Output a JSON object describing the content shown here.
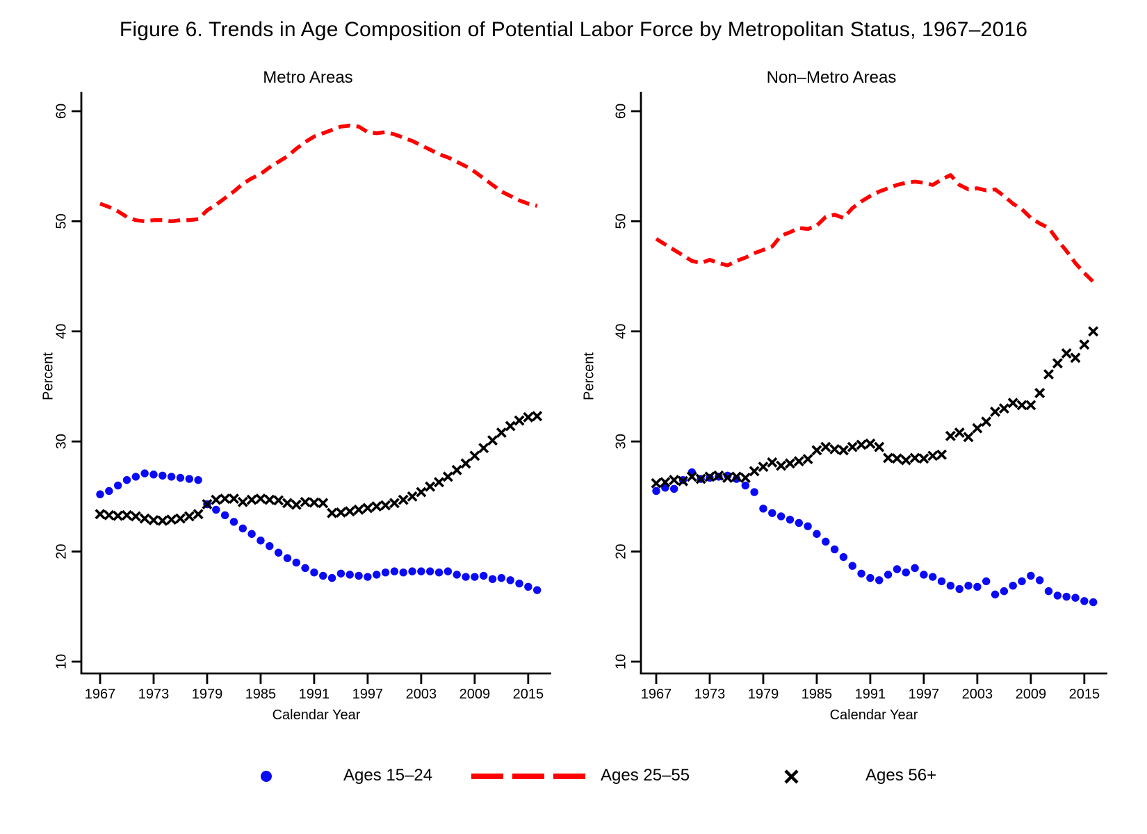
{
  "figure_title": "Figure 6. Trends in Age Composition of Potential Labor Force by Metropolitan Status, 1967–2016",
  "colors": {
    "ages_15_24": "#0a0af5",
    "ages_25_55": "#ff0000",
    "ages_56_plus": "#000000",
    "axis": "#000000",
    "background": "#ffffff"
  },
  "axes": {
    "ylabel": "Percent",
    "xlabel": "Calendar Year",
    "y_ticks": [
      10,
      20,
      30,
      40,
      50,
      60
    ],
    "x_ticks": [
      1967,
      1973,
      1979,
      1985,
      1991,
      1997,
      2003,
      2009,
      2015
    ],
    "ylim": [
      10,
      60
    ],
    "xlim": [
      1967,
      2016
    ],
    "grid": "off"
  },
  "legend": {
    "position": "bottom-center",
    "items": [
      {
        "label": "Ages 15–24",
        "marker": "filled-circle",
        "color": "#0a0af5"
      },
      {
        "label": "Ages 25–55",
        "marker": "dashed-line",
        "color": "#ff0000"
      },
      {
        "label": "Ages 56+",
        "marker": "x-cross",
        "color": "#000000"
      }
    ]
  },
  "chart_data": [
    {
      "type": "line",
      "title": "Metro Areas",
      "xlabel": "Calendar Year",
      "ylabel": "Percent",
      "ylim": [
        10,
        60
      ],
      "x": [
        1967,
        1968,
        1969,
        1970,
        1971,
        1972,
        1973,
        1974,
        1975,
        1976,
        1977,
        1978,
        1979,
        1980,
        1981,
        1982,
        1983,
        1984,
        1985,
        1986,
        1987,
        1988,
        1989,
        1990,
        1991,
        1992,
        1993,
        1994,
        1995,
        1996,
        1997,
        1998,
        1999,
        2000,
        2001,
        2002,
        2003,
        2004,
        2005,
        2006,
        2007,
        2008,
        2009,
        2010,
        2011,
        2012,
        2013,
        2014,
        2015,
        2016
      ],
      "series": [
        {
          "name": "Ages 15–24",
          "style": "scatter-circle",
          "color": "#0a0af5",
          "values": [
            25.2,
            25.5,
            26.0,
            26.5,
            26.8,
            27.1,
            27.0,
            26.9,
            26.8,
            26.7,
            26.6,
            26.5,
            24.3,
            23.8,
            23.3,
            22.7,
            22.1,
            21.6,
            21.0,
            20.5,
            19.9,
            19.4,
            19.0,
            18.5,
            18.1,
            17.8,
            17.6,
            18.0,
            17.9,
            17.8,
            17.7,
            17.9,
            18.1,
            18.2,
            18.1,
            18.2,
            18.2,
            18.2,
            18.1,
            18.2,
            17.9,
            17.7,
            17.7,
            17.8,
            17.5,
            17.6,
            17.4,
            17.1,
            16.8,
            16.5
          ]
        },
        {
          "name": "Ages 25–55",
          "style": "dashed-line",
          "color": "#ff0000",
          "values": [
            51.6,
            51.3,
            50.9,
            50.4,
            50.1,
            50.0,
            50.1,
            50.1,
            50.0,
            50.1,
            50.1,
            50.2,
            51.0,
            51.5,
            52.1,
            52.7,
            53.4,
            53.9,
            54.3,
            54.9,
            55.4,
            55.9,
            56.6,
            57.2,
            57.7,
            58.0,
            58.3,
            58.6,
            58.7,
            58.6,
            58.1,
            58.0,
            58.1,
            57.9,
            57.6,
            57.3,
            56.9,
            56.5,
            56.1,
            55.8,
            55.4,
            55.0,
            54.5,
            53.9,
            53.3,
            52.7,
            52.3,
            51.9,
            51.6,
            51.4
          ]
        },
        {
          "name": "Ages 56+",
          "style": "scatter-x",
          "color": "#000000",
          "values": [
            23.4,
            23.3,
            23.25,
            23.3,
            23.2,
            23.0,
            22.85,
            22.8,
            22.9,
            23.0,
            23.2,
            23.4,
            24.3,
            24.7,
            24.8,
            24.8,
            24.5,
            24.7,
            24.8,
            24.7,
            24.65,
            24.4,
            24.25,
            24.5,
            24.45,
            24.4,
            23.5,
            23.55,
            23.65,
            23.8,
            23.95,
            24.1,
            24.2,
            24.4,
            24.7,
            25.0,
            25.4,
            25.9,
            26.3,
            26.8,
            27.4,
            28.0,
            28.7,
            29.4,
            30.1,
            30.8,
            31.4,
            31.9,
            32.2,
            32.3
          ]
        }
      ]
    },
    {
      "type": "line",
      "title": "Non–Metro Areas",
      "xlabel": "Calendar Year",
      "ylabel": "Percent",
      "ylim": [
        10,
        60
      ],
      "x": [
        1967,
        1968,
        1969,
        1970,
        1971,
        1972,
        1973,
        1974,
        1975,
        1976,
        1977,
        1978,
        1979,
        1980,
        1981,
        1982,
        1983,
        1984,
        1985,
        1986,
        1987,
        1988,
        1989,
        1990,
        1991,
        1992,
        1993,
        1994,
        1995,
        1996,
        1997,
        1998,
        1999,
        2000,
        2001,
        2002,
        2003,
        2004,
        2005,
        2006,
        2007,
        2008,
        2009,
        2010,
        2011,
        2012,
        2013,
        2014,
        2015,
        2016
      ],
      "series": [
        {
          "name": "Ages 15–24",
          "style": "scatter-circle",
          "color": "#0a0af5",
          "values": [
            25.5,
            25.8,
            25.7,
            26.5,
            27.2,
            26.6,
            26.7,
            26.8,
            26.9,
            26.6,
            26.0,
            25.4,
            23.9,
            23.5,
            23.2,
            22.9,
            22.6,
            22.3,
            21.6,
            20.9,
            20.2,
            19.5,
            18.7,
            18.0,
            17.6,
            17.4,
            17.9,
            18.4,
            18.1,
            18.5,
            17.9,
            17.7,
            17.3,
            16.9,
            16.6,
            16.9,
            16.8,
            17.3,
            16.1,
            16.4,
            16.9,
            17.3,
            17.8,
            17.4,
            16.4,
            16.0,
            15.9,
            15.8,
            15.5,
            15.4
          ]
        },
        {
          "name": "Ages 25–55",
          "style": "dashed-line",
          "color": "#ff0000",
          "values": [
            48.4,
            47.9,
            47.4,
            46.9,
            46.4,
            46.2,
            46.5,
            46.2,
            46.0,
            46.4,
            46.7,
            47.1,
            47.4,
            47.7,
            48.7,
            49.0,
            49.4,
            49.3,
            49.6,
            50.4,
            50.6,
            50.3,
            51.2,
            51.8,
            52.3,
            52.7,
            53.0,
            53.3,
            53.5,
            53.6,
            53.5,
            53.3,
            53.8,
            54.2,
            53.3,
            52.9,
            53.0,
            52.8,
            52.9,
            52.3,
            51.6,
            51.1,
            50.3,
            49.8,
            49.4,
            48.3,
            47.3,
            46.2,
            45.3,
            44.5
          ]
        },
        {
          "name": "Ages 56+",
          "style": "scatter-x",
          "color": "#000000",
          "values": [
            26.2,
            26.3,
            26.5,
            26.4,
            26.8,
            26.6,
            26.8,
            26.9,
            26.7,
            26.8,
            26.7,
            27.3,
            27.7,
            28.1,
            27.8,
            28.0,
            28.2,
            28.4,
            29.2,
            29.5,
            29.3,
            29.2,
            29.5,
            29.7,
            29.8,
            29.5,
            28.5,
            28.45,
            28.3,
            28.5,
            28.45,
            28.7,
            28.8,
            30.5,
            30.8,
            30.4,
            31.2,
            31.8,
            32.7,
            33.0,
            33.5,
            33.3,
            33.3,
            34.4,
            36.1,
            37.1,
            38.0,
            37.6,
            38.8,
            40.0
          ]
        }
      ]
    }
  ]
}
